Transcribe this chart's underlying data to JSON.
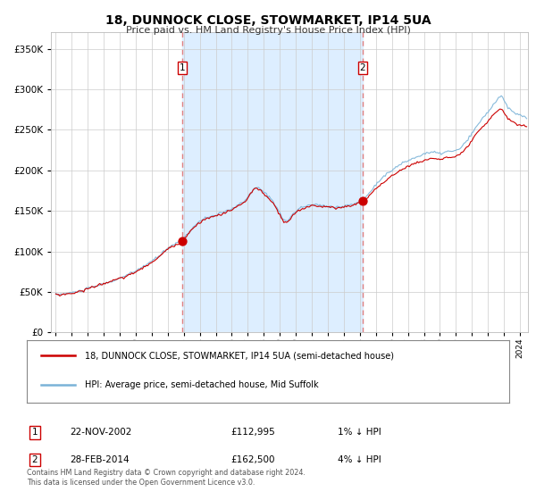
{
  "title": "18, DUNNOCK CLOSE, STOWMARKET, IP14 5UA",
  "subtitle": "Price paid vs. HM Land Registry's House Price Index (HPI)",
  "legend_line1": "18, DUNNOCK CLOSE, STOWMARKET, IP14 5UA (semi-detached house)",
  "legend_line2": "HPI: Average price, semi-detached house, Mid Suffolk",
  "sale1_date": "22-NOV-2002",
  "sale1_price": 112995,
  "sale1_label": "1% ↓ HPI",
  "sale2_date": "28-FEB-2014",
  "sale2_price": 162500,
  "sale2_label": "4% ↓ HPI",
  "footnote": "Contains HM Land Registry data © Crown copyright and database right 2024.\nThis data is licensed under the Open Government Licence v3.0.",
  "hpi_color": "#7ab3d8",
  "price_color": "#cc0000",
  "sale_dot_color": "#cc0000",
  "vline_color": "#e08080",
  "shade_color": "#ddeeff",
  "bg_color": "#ffffff",
  "grid_color": "#cccccc",
  "ylim": [
    0,
    370000
  ],
  "yticks": [
    0,
    50000,
    100000,
    150000,
    200000,
    250000,
    300000,
    350000
  ],
  "sale1_x": 2002.9,
  "sale2_x": 2014.17,
  "xmin": 1994.7,
  "xmax": 2024.5
}
